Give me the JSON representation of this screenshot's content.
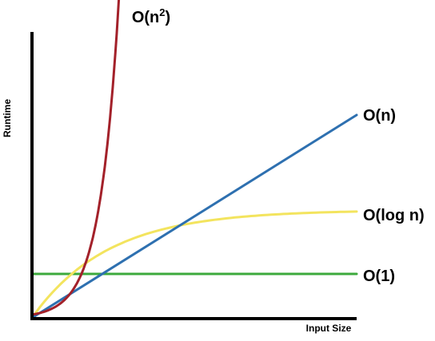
{
  "chart_data": {
    "type": "line",
    "xlabel": "Input Size",
    "ylabel": "Runtime",
    "grid": false,
    "legend": "inline labels at line ends",
    "series": [
      {
        "name": "O(n²)",
        "color": "#a3212a",
        "label_parts": [
          "O(n",
          "2",
          ")"
        ]
      },
      {
        "name": "O(n)",
        "color": "#2e70b0",
        "label_parts": [
          "O(n)"
        ]
      },
      {
        "name": "O(log n)",
        "color": "#f3e45e",
        "label_parts": [
          "O(log n)"
        ]
      },
      {
        "name": "O(1)",
        "color": "#3caa3c",
        "label_parts": [
          "O(1)"
        ]
      }
    ]
  }
}
